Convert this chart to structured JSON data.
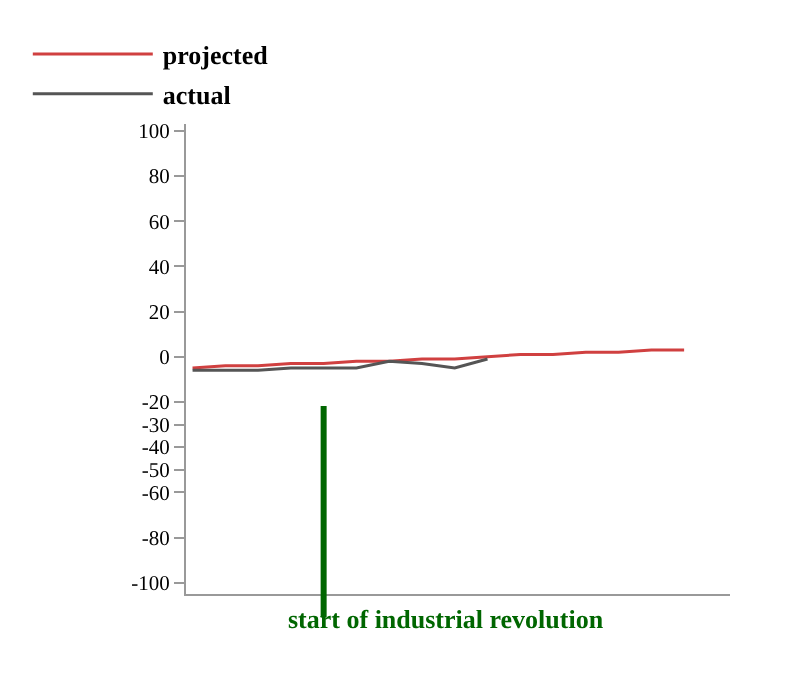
{
  "chart_data": {
    "type": "line",
    "categories": [
      null,
      null,
      null,
      null,
      null,
      null,
      null,
      null,
      null,
      null,
      null,
      null,
      null,
      null,
      null,
      null
    ],
    "series": [
      {
        "name": "projected",
        "color": "#d04040",
        "values": [
          -5,
          -4,
          -4,
          -3,
          -3,
          -2,
          -2,
          -1,
          -1,
          0,
          1,
          1,
          2,
          2,
          3,
          3
        ]
      },
      {
        "name": "actual",
        "color": "#555555",
        "values": [
          -6,
          -6,
          -6,
          -5,
          -5,
          -5,
          -2,
          -3,
          -5,
          -1,
          null,
          null,
          null,
          null,
          null,
          null
        ]
      }
    ],
    "ylim": [
      -105,
      103
    ],
    "yticks": [
      100,
      80,
      60,
      40,
      20,
      0,
      -20,
      -30,
      -40,
      -50,
      -60,
      -80,
      -100
    ],
    "annotations": [
      "start of industrial revolution"
    ],
    "legend": "top left",
    "tick_labels": "y",
    "marker": "none",
    "line_style": "solid"
  }
}
